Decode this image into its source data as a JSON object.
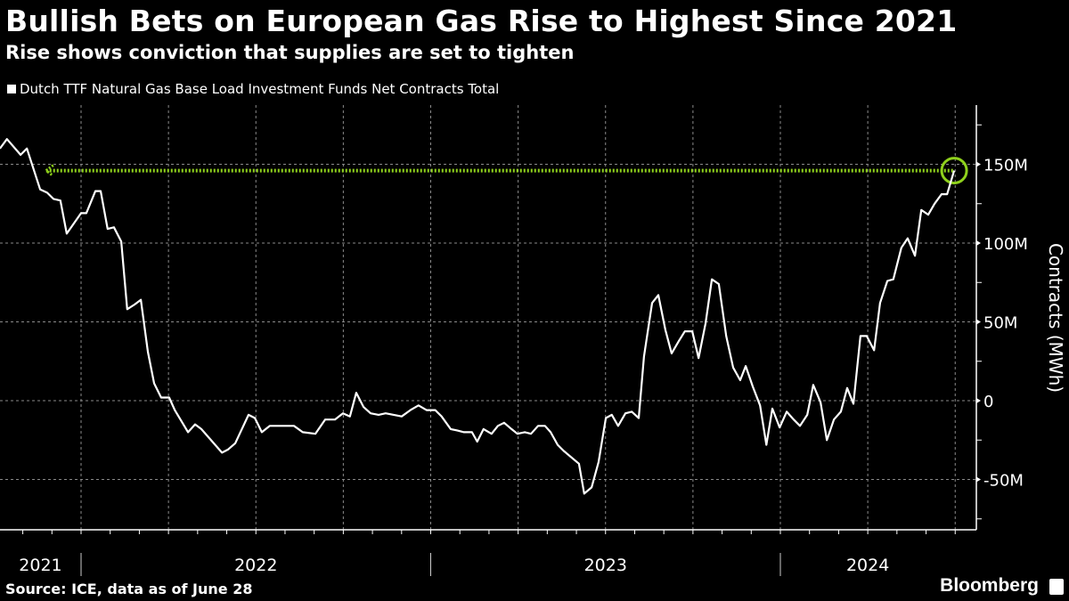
{
  "header": {
    "title": "Bullish Bets on European Gas Rise to Highest Since 2021",
    "subtitle": "Rise shows conviction that supplies are set to tighten"
  },
  "footer": {
    "source": "Source: ICE, data as of June 28",
    "brand": "Bloomberg"
  },
  "colors": {
    "line": "#ffffff",
    "highlight": "#8fd11c",
    "background": "#000000",
    "grid": "#8a8a8a"
  },
  "chart_data": {
    "type": "line",
    "title": "Bullish Bets on European Gas Rise to Highest Since 2021",
    "subtitle": "Rise shows conviction that supplies are set to tighten",
    "ylabel": "Contracts (MWh)",
    "xlabel": "",
    "ylim": [
      -82,
      186
    ],
    "xlim": [
      2021.768,
      2024.51
    ],
    "y_ticks": [
      {
        "v": 150,
        "label": "150M"
      },
      {
        "v": 100,
        "label": "100M"
      },
      {
        "v": 50,
        "label": "50M"
      },
      {
        "v": 0,
        "label": "0"
      },
      {
        "v": -50,
        "label": "-50M"
      }
    ],
    "x_ticks": [
      {
        "label": "2021",
        "at": 2021.884
      },
      {
        "label": "2022",
        "at": 2022.5
      },
      {
        "label": "2023",
        "at": 2023.5
      },
      {
        "label": "2024",
        "at": 2024.25
      }
    ],
    "year_boundaries": [
      2022,
      2023,
      2024
    ],
    "grid": true,
    "legend_position": "top-left",
    "series": [
      {
        "name": "Dutch TTF Natural Gas Base Load Investment Funds Net Contracts Total",
        "units": "M MWh",
        "x": [
          2021.768,
          2021.788,
          2021.827,
          2021.845,
          2021.883,
          2021.903,
          2021.921,
          2021.941,
          2021.959,
          2022.0,
          2022.015,
          2022.041,
          2022.056,
          2022.076,
          2022.094,
          2022.115,
          2022.132,
          2022.153,
          2022.171,
          2022.191,
          2022.209,
          2022.229,
          2022.252,
          2022.268,
          2022.306,
          2022.326,
          2022.344,
          2022.403,
          2022.42,
          2022.441,
          2022.479,
          2022.497,
          2022.517,
          2022.54,
          2022.578,
          2022.609,
          2022.634,
          2022.67,
          2022.698,
          2022.726,
          2022.749,
          2022.769,
          2022.787,
          2022.808,
          2022.828,
          2022.851,
          2022.871,
          2022.917,
          2022.942,
          2022.965,
          2022.988,
          2023.013,
          2023.031,
          2023.057,
          2023.077,
          2023.095,
          2023.118,
          2023.133,
          2023.151,
          2023.174,
          2023.192,
          2023.21,
          2023.231,
          2023.248,
          2023.269,
          2023.287,
          2023.307,
          2023.327,
          2023.343,
          2023.363,
          2023.381,
          2023.424,
          2023.439,
          2023.46,
          2023.48,
          2023.501,
          2023.518,
          2023.536,
          2023.557,
          2023.575,
          2023.595,
          2023.61,
          2023.633,
          2023.651,
          2023.671,
          2023.689,
          2023.71,
          2023.727,
          2023.748,
          2023.766,
          2023.786,
          2023.804,
          2023.824,
          2023.845,
          2023.865,
          2023.885,
          2023.901,
          2023.921,
          2023.942,
          2023.96,
          2023.977,
          2023.998,
          2024.018,
          2024.038,
          2024.056,
          2024.077,
          2024.094,
          2024.115,
          2024.133,
          2024.153,
          2024.173,
          2024.191,
          2024.209,
          2024.229,
          2024.247,
          2024.268,
          2024.285,
          2024.306,
          2024.323,
          2024.346,
          2024.364,
          2024.385,
          2024.403,
          2024.423,
          2024.441,
          2024.461,
          2024.477,
          2024.497
        ],
        "values": [
          160,
          166,
          156,
          160,
          134,
          132,
          128,
          127,
          106,
          119,
          119,
          133,
          133,
          109,
          110,
          101,
          58,
          61,
          64,
          31,
          11,
          2,
          2,
          -6,
          -20,
          -15,
          -18,
          -33,
          -31,
          -27,
          -9,
          -11,
          -20,
          -16,
          -16,
          -16,
          -20,
          -21,
          -12,
          -12,
          -8,
          -10,
          5,
          -4,
          -8,
          -9,
          -8,
          -10,
          -6,
          -3,
          -6,
          -6,
          -10,
          -18,
          -19,
          -20,
          -20,
          -26,
          -18,
          -21,
          -16,
          -14,
          -18,
          -21,
          -20,
          -21,
          -16,
          -16,
          -20,
          -28,
          -32,
          -40,
          -59,
          -55,
          -39,
          -11,
          -9,
          -16,
          -8,
          -7,
          -11,
          28,
          62,
          67,
          45,
          30,
          38,
          44,
          44,
          27,
          49,
          77,
          74,
          41,
          21,
          13,
          22,
          9,
          -3,
          -28,
          -5,
          -17,
          -7,
          -12,
          -16,
          -9,
          10,
          -1,
          -25,
          -12,
          -7,
          8,
          -2,
          41,
          41,
          32,
          62,
          76,
          77,
          97,
          103,
          92,
          121,
          118,
          125,
          131,
          131,
          146
        ]
      }
    ],
    "annotations": [
      {
        "type": "reference-line",
        "value": 146,
        "from": 2021.9,
        "to": 2024.497,
        "style": "dotted",
        "color": "#8fd11c"
      },
      {
        "type": "circle-marker",
        "x": 2024.497,
        "value": 146,
        "color": "#8fd11c"
      }
    ]
  }
}
